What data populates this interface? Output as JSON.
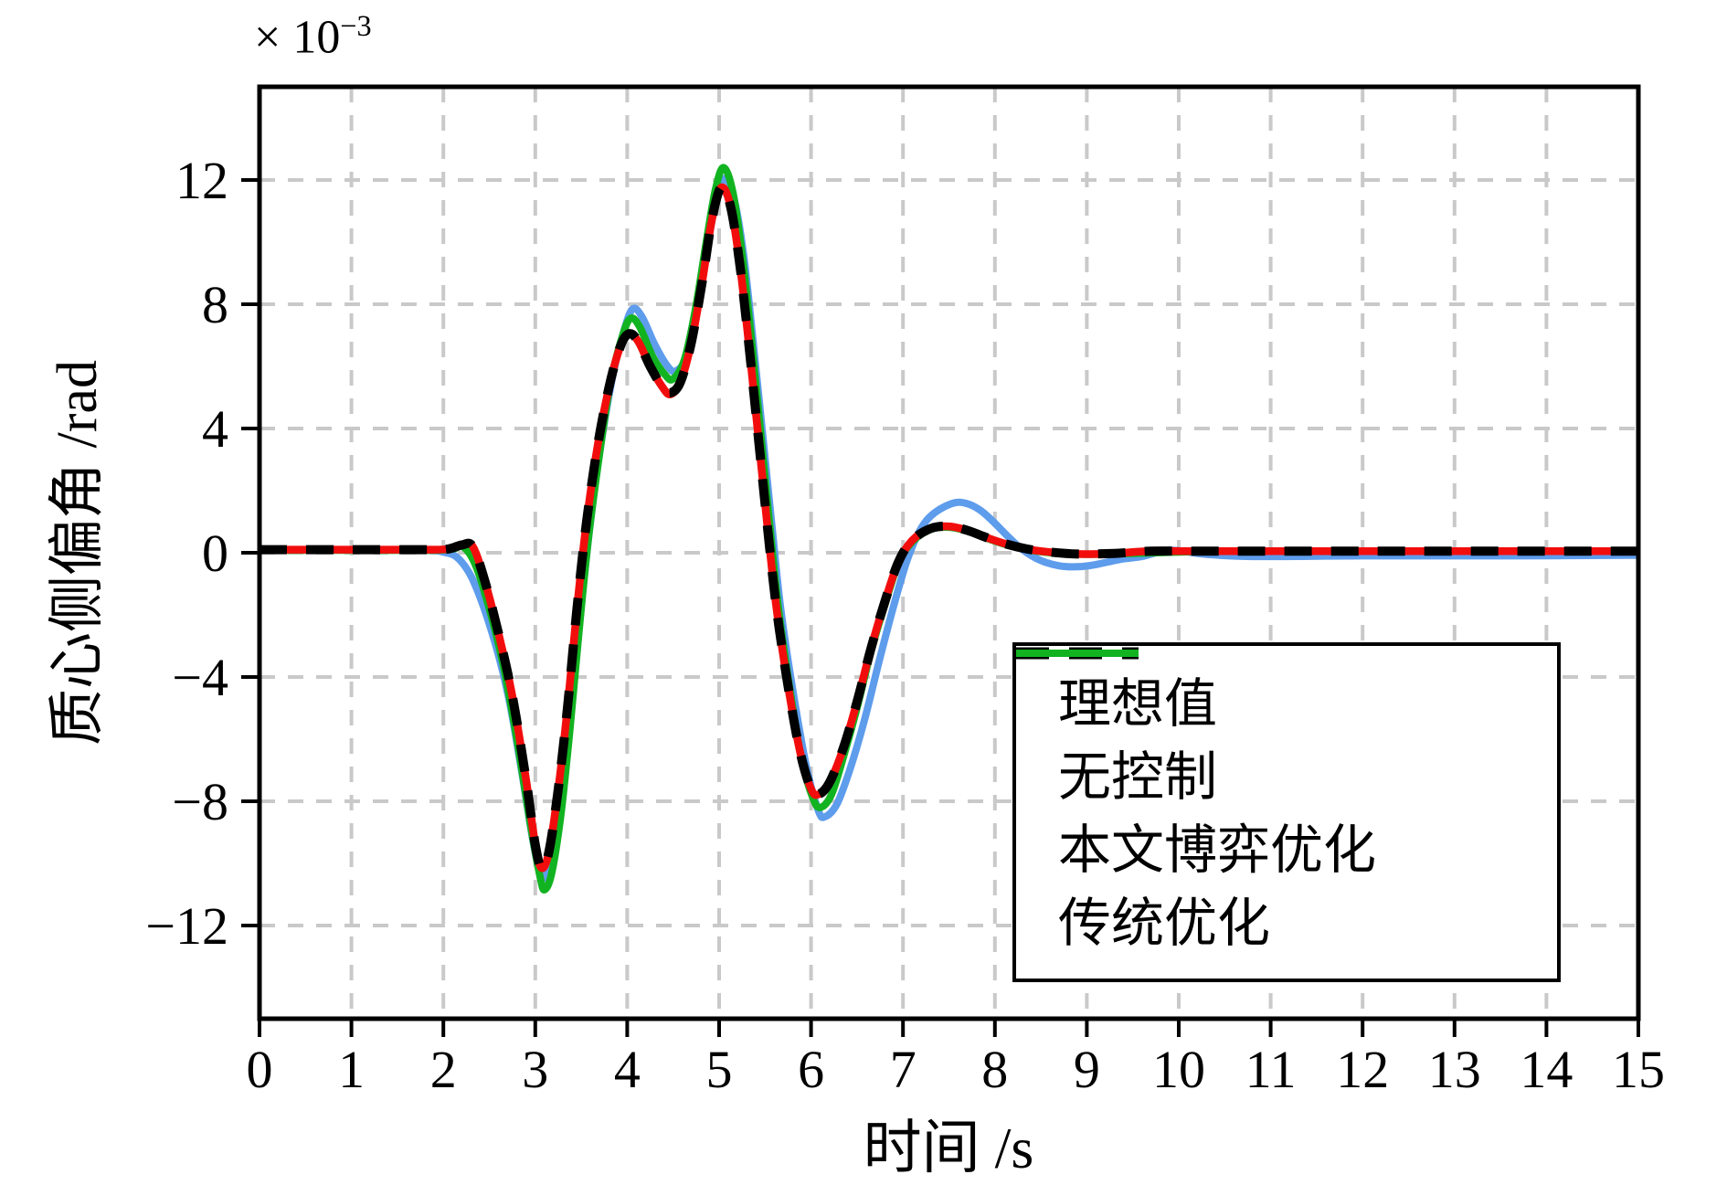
{
  "figure": {
    "multiplier_base": "× 10",
    "multiplier_exp": "−3",
    "xlabel": "时间 /s",
    "ylabel": "质心侧偏角 /rad"
  },
  "axes": {
    "x_ticks": [
      "0",
      "1",
      "2",
      "3",
      "4",
      "5",
      "6",
      "7",
      "8",
      "9",
      "10",
      "11",
      "12",
      "13",
      "14",
      "15"
    ],
    "y_ticks": [
      "12",
      "8",
      "4",
      "0",
      "−4",
      "−8",
      "−12"
    ],
    "grid_color": "#c9c9c9",
    "spine_color": "#000000"
  },
  "legend": {
    "position": "lower right",
    "items": [
      {
        "key": "ideal",
        "label": "理想值",
        "color": "#000000",
        "dash": true
      },
      {
        "key": "no-control",
        "label": "无控制",
        "color": "#5e9cec",
        "dash": false
      },
      {
        "key": "game-optimization",
        "label": "本文博弈优化",
        "color": "#f20d0d",
        "dash": false
      },
      {
        "key": "traditional-optimization",
        "label": "传统优化",
        "color": "#12b321",
        "dash": false
      }
    ]
  },
  "chart_data": {
    "type": "line",
    "title": "",
    "xlabel": "时间 /s",
    "ylabel": "质心侧偏角 /rad",
    "x_range": [
      0,
      15
    ],
    "y_range_e3": [
      -15,
      15
    ],
    "y_multiplier": "1e-3 rad",
    "grid": true,
    "legend_position": "lower right",
    "series": [
      {
        "key": "no-control",
        "name": "无控制",
        "color": "#5e9cec",
        "dash": false,
        "width": 8,
        "points": [
          [
            0,
            0.1
          ],
          [
            1.0,
            0.1
          ],
          [
            1.8,
            0.08
          ],
          [
            2.0,
            0.02
          ],
          [
            2.15,
            -0.15
          ],
          [
            2.3,
            -0.75
          ],
          [
            2.45,
            -1.85
          ],
          [
            2.6,
            -3.3
          ],
          [
            2.72,
            -4.8
          ],
          [
            2.85,
            -7.0
          ],
          [
            2.97,
            -9.2
          ],
          [
            3.05,
            -10.3
          ],
          [
            3.1,
            -10.45
          ],
          [
            3.2,
            -9.6
          ],
          [
            3.3,
            -7.5
          ],
          [
            3.4,
            -4.7
          ],
          [
            3.5,
            -1.7
          ],
          [
            3.6,
            1.0
          ],
          [
            3.72,
            3.6
          ],
          [
            3.85,
            5.8
          ],
          [
            3.97,
            7.2
          ],
          [
            4.06,
            7.85
          ],
          [
            4.16,
            7.6
          ],
          [
            4.3,
            6.7
          ],
          [
            4.44,
            6.0
          ],
          [
            4.53,
            5.85
          ],
          [
            4.64,
            6.3
          ],
          [
            4.76,
            7.9
          ],
          [
            4.88,
            10.0
          ],
          [
            4.98,
            11.5
          ],
          [
            5.07,
            12.05
          ],
          [
            5.17,
            11.3
          ],
          [
            5.27,
            9.5
          ],
          [
            5.37,
            6.8
          ],
          [
            5.47,
            3.9
          ],
          [
            5.57,
            1.0
          ],
          [
            5.67,
            -1.8
          ],
          [
            5.8,
            -4.4
          ],
          [
            5.95,
            -6.9
          ],
          [
            6.08,
            -8.3
          ],
          [
            6.15,
            -8.5
          ],
          [
            6.28,
            -8.1
          ],
          [
            6.42,
            -7.0
          ],
          [
            6.58,
            -5.4
          ],
          [
            6.74,
            -3.5
          ],
          [
            6.9,
            -1.7
          ],
          [
            7.05,
            -0.2
          ],
          [
            7.2,
            0.8
          ],
          [
            7.35,
            1.3
          ],
          [
            7.55,
            1.6
          ],
          [
            7.7,
            1.58
          ],
          [
            7.85,
            1.35
          ],
          [
            8.0,
            0.95
          ],
          [
            8.15,
            0.5
          ],
          [
            8.3,
            0.1
          ],
          [
            8.5,
            -0.25
          ],
          [
            8.7,
            -0.42
          ],
          [
            8.9,
            -0.45
          ],
          [
            9.1,
            -0.38
          ],
          [
            9.35,
            -0.22
          ],
          [
            9.6,
            -0.12
          ],
          [
            9.9,
            0.08
          ],
          [
            10.3,
            -0.05
          ],
          [
            10.8,
            -0.12
          ],
          [
            12.0,
            -0.1
          ],
          [
            13.5,
            -0.1
          ],
          [
            15,
            -0.08
          ]
        ]
      },
      {
        "key": "traditional-optimization",
        "name": "传统优化",
        "color": "#12b321",
        "dash": false,
        "width": 8,
        "points": [
          [
            0,
            0.08
          ],
          [
            1.0,
            0.08
          ],
          [
            1.9,
            0.08
          ],
          [
            2.1,
            0.12
          ],
          [
            2.22,
            0.18
          ],
          [
            2.35,
            -0.4
          ],
          [
            2.5,
            -1.8
          ],
          [
            2.65,
            -3.6
          ],
          [
            2.8,
            -6.0
          ],
          [
            2.95,
            -8.8
          ],
          [
            3.05,
            -10.4
          ],
          [
            3.1,
            -10.85
          ],
          [
            3.18,
            -10.3
          ],
          [
            3.28,
            -8.4
          ],
          [
            3.38,
            -5.6
          ],
          [
            3.48,
            -2.4
          ],
          [
            3.58,
            0.5
          ],
          [
            3.7,
            3.2
          ],
          [
            3.82,
            5.5
          ],
          [
            3.95,
            7.0
          ],
          [
            4.04,
            7.55
          ],
          [
            4.14,
            7.25
          ],
          [
            4.28,
            6.3
          ],
          [
            4.42,
            5.7
          ],
          [
            4.5,
            5.6
          ],
          [
            4.62,
            6.2
          ],
          [
            4.74,
            7.8
          ],
          [
            4.86,
            10.0
          ],
          [
            4.96,
            11.7
          ],
          [
            5.05,
            12.4
          ],
          [
            5.15,
            11.6
          ],
          [
            5.25,
            9.6
          ],
          [
            5.35,
            6.9
          ],
          [
            5.45,
            3.9
          ],
          [
            5.55,
            0.9
          ],
          [
            5.65,
            -1.9
          ],
          [
            5.78,
            -4.6
          ],
          [
            5.9,
            -6.7
          ],
          [
            6.02,
            -7.9
          ],
          [
            6.1,
            -8.2
          ],
          [
            6.22,
            -7.8
          ],
          [
            6.35,
            -6.6
          ],
          [
            6.5,
            -5.0
          ],
          [
            6.65,
            -3.2
          ],
          [
            6.8,
            -1.7
          ],
          [
            6.95,
            -0.35
          ],
          [
            7.1,
            0.35
          ],
          [
            7.3,
            0.75
          ],
          [
            7.5,
            0.82
          ],
          [
            7.7,
            0.7
          ],
          [
            7.9,
            0.48
          ],
          [
            8.1,
            0.28
          ],
          [
            8.35,
            0.1
          ],
          [
            8.6,
            0.0
          ],
          [
            9.0,
            -0.05
          ],
          [
            9.5,
            -0.02
          ],
          [
            10.5,
            0.05
          ],
          [
            12,
            0.05
          ],
          [
            13.5,
            0.05
          ],
          [
            15,
            0.05
          ]
        ]
      },
      {
        "key": "game-optimization",
        "name": "本文博弈优化",
        "color": "#f20d0d",
        "dash": false,
        "width": 8.5,
        "points": [
          [
            0,
            0.1
          ],
          [
            1.0,
            0.1
          ],
          [
            1.8,
            0.1
          ],
          [
            2.05,
            0.12
          ],
          [
            2.2,
            0.25
          ],
          [
            2.32,
            0.2
          ],
          [
            2.45,
            -0.9
          ],
          [
            2.6,
            -2.6
          ],
          [
            2.75,
            -4.6
          ],
          [
            2.9,
            -7.3
          ],
          [
            3.0,
            -9.4
          ],
          [
            3.07,
            -10.15
          ],
          [
            3.15,
            -9.6
          ],
          [
            3.25,
            -7.6
          ],
          [
            3.35,
            -5.0
          ],
          [
            3.45,
            -1.9
          ],
          [
            3.55,
            0.8
          ],
          [
            3.67,
            3.3
          ],
          [
            3.8,
            5.3
          ],
          [
            3.92,
            6.6
          ],
          [
            4.02,
            7.05
          ],
          [
            4.12,
            6.8
          ],
          [
            4.25,
            6.0
          ],
          [
            4.38,
            5.35
          ],
          [
            4.47,
            5.1
          ],
          [
            4.58,
            5.5
          ],
          [
            4.7,
            6.8
          ],
          [
            4.82,
            8.8
          ],
          [
            4.92,
            10.7
          ],
          [
            5.02,
            11.75
          ],
          [
            5.12,
            11.2
          ],
          [
            5.22,
            9.4
          ],
          [
            5.32,
            6.8
          ],
          [
            5.42,
            3.9
          ],
          [
            5.52,
            1.0
          ],
          [
            5.62,
            -1.7
          ],
          [
            5.75,
            -4.3
          ],
          [
            5.88,
            -6.4
          ],
          [
            6.0,
            -7.6
          ],
          [
            6.08,
            -7.78
          ],
          [
            6.2,
            -7.4
          ],
          [
            6.35,
            -6.3
          ],
          [
            6.5,
            -4.8
          ],
          [
            6.65,
            -3.1
          ],
          [
            6.8,
            -1.6
          ],
          [
            6.95,
            -0.3
          ],
          [
            7.1,
            0.4
          ],
          [
            7.3,
            0.78
          ],
          [
            7.5,
            0.85
          ],
          [
            7.7,
            0.72
          ],
          [
            7.9,
            0.5
          ],
          [
            8.1,
            0.3
          ],
          [
            8.35,
            0.12
          ],
          [
            8.6,
            0.02
          ],
          [
            8.9,
            -0.04
          ],
          [
            9.3,
            -0.02
          ],
          [
            9.7,
            0.05
          ],
          [
            10.5,
            0.05
          ],
          [
            12,
            0.05
          ],
          [
            13.5,
            0.05
          ],
          [
            15,
            0.05
          ]
        ]
      },
      {
        "key": "ideal",
        "name": "理想值",
        "color": "#000000",
        "dash": true,
        "width": 10,
        "points": [
          [
            0,
            0.1
          ],
          [
            1.0,
            0.1
          ],
          [
            1.8,
            0.1
          ],
          [
            2.05,
            0.12
          ],
          [
            2.2,
            0.25
          ],
          [
            2.32,
            0.2
          ],
          [
            2.45,
            -0.9
          ],
          [
            2.6,
            -2.6
          ],
          [
            2.75,
            -4.6
          ],
          [
            2.9,
            -7.3
          ],
          [
            3.0,
            -9.4
          ],
          [
            3.07,
            -10.15
          ],
          [
            3.15,
            -9.6
          ],
          [
            3.25,
            -7.6
          ],
          [
            3.35,
            -5.0
          ],
          [
            3.45,
            -1.9
          ],
          [
            3.55,
            0.8
          ],
          [
            3.67,
            3.3
          ],
          [
            3.8,
            5.3
          ],
          [
            3.92,
            6.6
          ],
          [
            4.02,
            7.05
          ],
          [
            4.12,
            6.8
          ],
          [
            4.25,
            6.0
          ],
          [
            4.38,
            5.35
          ],
          [
            4.47,
            5.15
          ],
          [
            4.58,
            5.5
          ],
          [
            4.7,
            6.8
          ],
          [
            4.82,
            8.8
          ],
          [
            4.92,
            10.7
          ],
          [
            5.02,
            11.75
          ],
          [
            5.12,
            11.2
          ],
          [
            5.22,
            9.4
          ],
          [
            5.32,
            6.8
          ],
          [
            5.42,
            3.9
          ],
          [
            5.52,
            1.0
          ],
          [
            5.62,
            -1.7
          ],
          [
            5.75,
            -4.3
          ],
          [
            5.88,
            -6.4
          ],
          [
            6.0,
            -7.6
          ],
          [
            6.08,
            -7.78
          ],
          [
            6.2,
            -7.4
          ],
          [
            6.35,
            -6.3
          ],
          [
            6.5,
            -4.8
          ],
          [
            6.65,
            -3.1
          ],
          [
            6.8,
            -1.6
          ],
          [
            6.95,
            -0.3
          ],
          [
            7.1,
            0.4
          ],
          [
            7.3,
            0.78
          ],
          [
            7.5,
            0.85
          ],
          [
            7.7,
            0.72
          ],
          [
            7.9,
            0.5
          ],
          [
            8.1,
            0.3
          ],
          [
            8.35,
            0.12
          ],
          [
            8.6,
            0.02
          ],
          [
            8.9,
            -0.04
          ],
          [
            9.3,
            -0.02
          ],
          [
            9.7,
            0.05
          ],
          [
            10.5,
            0.05
          ],
          [
            12,
            0.05
          ],
          [
            13.5,
            0.05
          ],
          [
            15,
            0.05
          ]
        ]
      }
    ]
  }
}
